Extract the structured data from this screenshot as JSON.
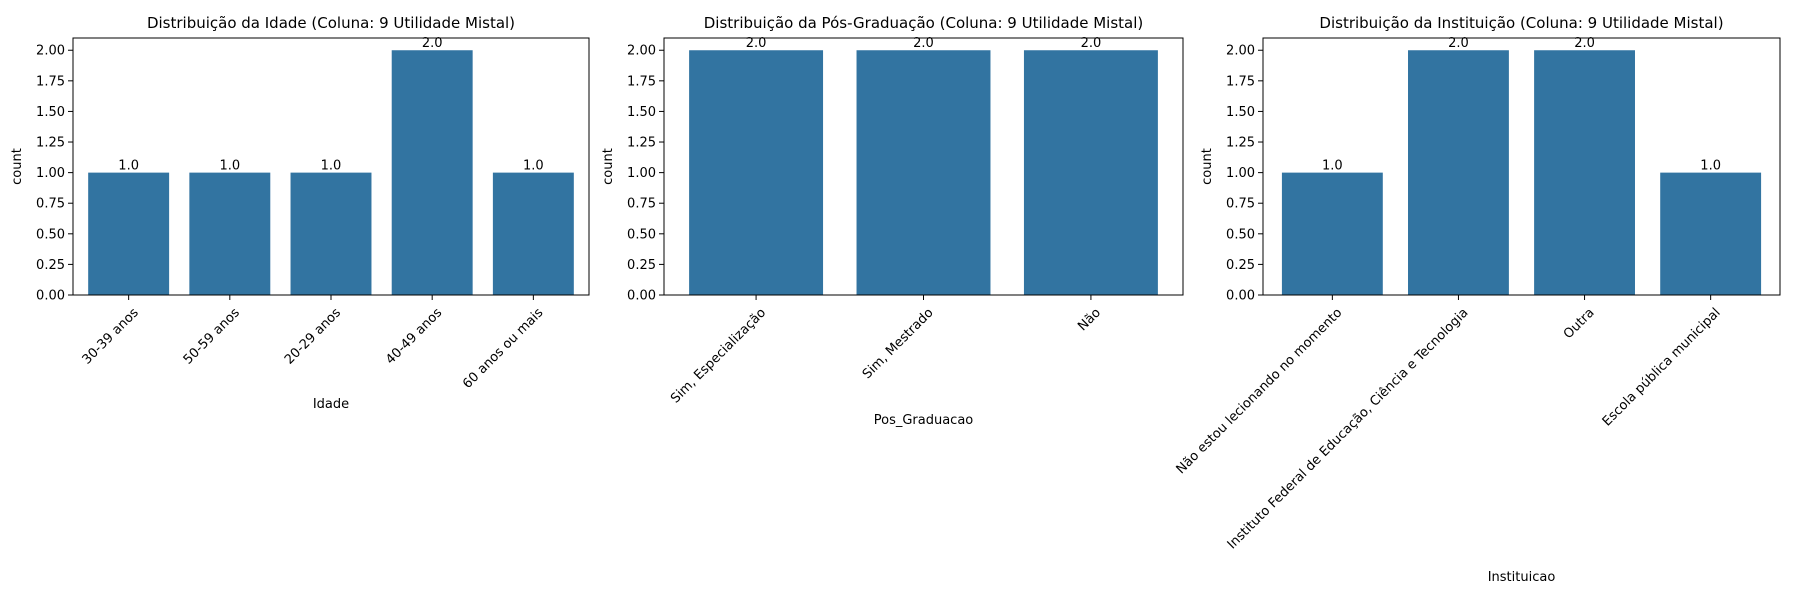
{
  "colors": {
    "bar": "#3274a1",
    "axis": "#000000",
    "background": "#ffffff"
  },
  "chart_data": [
    {
      "type": "bar",
      "title": "Distribuição da Idade (Coluna: 9 Utilidade Mistal)",
      "xlabel": "Idade",
      "ylabel": "count",
      "categories": [
        "30-39 anos",
        "50-59 anos",
        "20-29 anos",
        "40-49 anos",
        "60 anos ou mais"
      ],
      "values": [
        1.0,
        1.0,
        1.0,
        2.0,
        1.0
      ],
      "value_labels": [
        "1.0",
        "1.0",
        "1.0",
        "2.0",
        "1.0"
      ],
      "ylim": [
        0,
        2.1
      ],
      "yticks": [
        "0.00",
        "0.25",
        "0.50",
        "0.75",
        "1.00",
        "1.25",
        "1.50",
        "1.75",
        "2.00"
      ],
      "grid": false,
      "xtick_rotation": 45
    },
    {
      "type": "bar",
      "title": "Distribuição da Pós-Graduação (Coluna: 9 Utilidade Mistal)",
      "xlabel": "Pos_Graduacao",
      "ylabel": "count",
      "categories": [
        "Sim, Especialização",
        "Sim, Mestrado",
        "Não"
      ],
      "values": [
        2.0,
        2.0,
        2.0
      ],
      "value_labels": [
        "2.0",
        "2.0",
        "2.0"
      ],
      "ylim": [
        0,
        2.1
      ],
      "yticks": [
        "0.00",
        "0.25",
        "0.50",
        "0.75",
        "1.00",
        "1.25",
        "1.50",
        "1.75",
        "2.00"
      ],
      "grid": false,
      "xtick_rotation": 45
    },
    {
      "type": "bar",
      "title": "Distribuição da Instituição (Coluna: 9 Utilidade Mistal)",
      "xlabel": "Instituicao",
      "ylabel": "count",
      "categories": [
        "Não estou lecionando no momento",
        "Instituto Federal de Educação, Ciência e Tecnologia",
        "Outra",
        "Escola pública municipal"
      ],
      "values": [
        1.0,
        2.0,
        2.0,
        1.0
      ],
      "value_labels": [
        "1.0",
        "2.0",
        "2.0",
        "1.0"
      ],
      "ylim": [
        0,
        2.1
      ],
      "yticks": [
        "0.00",
        "0.25",
        "0.50",
        "0.75",
        "1.00",
        "1.25",
        "1.50",
        "1.75",
        "2.00"
      ],
      "grid": false,
      "xtick_rotation": 45
    }
  ]
}
